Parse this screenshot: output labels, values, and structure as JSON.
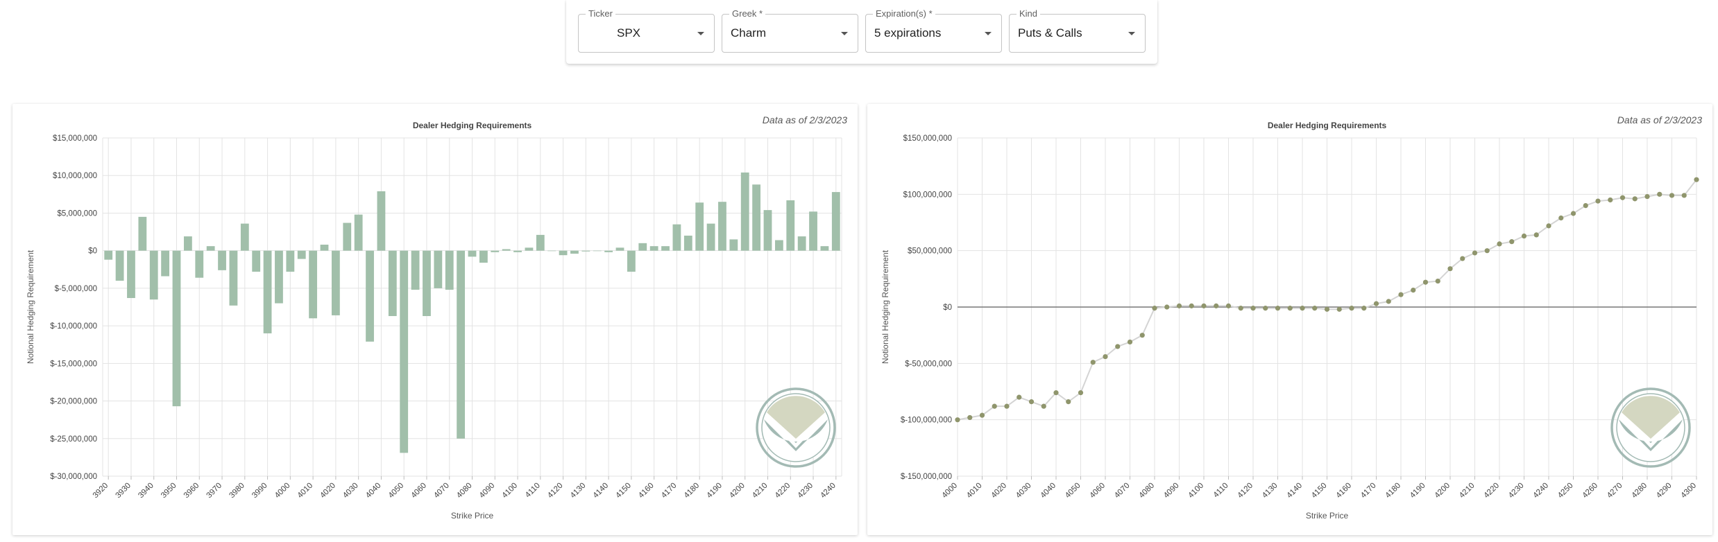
{
  "filters": [
    {
      "label": "Ticker",
      "value": "SPX"
    },
    {
      "label": "Greek *",
      "value": "Charm"
    },
    {
      "label": "Expiration(s) *",
      "value": "5 expirations"
    },
    {
      "label": "Kind",
      "value": "Puts & Calls"
    }
  ],
  "charts": [
    {
      "title": "Dealer Hedging Requirements",
      "date_note": "Data as of 2/3/2023"
    },
    {
      "title": "Dealer Hedging Requirements",
      "date_note": "Data as of 2/3/2023"
    }
  ],
  "colors": {
    "bar": "#a1bfaa",
    "line_point": "#8f956c",
    "line": "#d4d4d4",
    "logo_top": "#d4d7c1",
    "logo_bottom": "#a3bab4",
    "logo_ring": "#a3bab4"
  },
  "icons": {
    "dropdown": "caret-down-icon",
    "logo": "shield-v-logo"
  },
  "chart_data": [
    {
      "type": "bar",
      "xlabel": "Strike Price",
      "ylabel": "Notional Hedging Requirement",
      "ylim": [
        -30000000,
        15000000
      ],
      "yticks": [
        -30000000,
        -25000000,
        -20000000,
        -15000000,
        -10000000,
        -5000000,
        0,
        5000000,
        10000000,
        15000000
      ],
      "ytick_labels": [
        "$-30,000,000",
        "$-25,000,000",
        "$-20,000,000",
        "$-15,000,000",
        "$-10,000,000",
        "$-5,000,000",
        "$0",
        "$5,000,000",
        "$10,000,000",
        "$15,000,000"
      ],
      "xtick_labels": [
        "3920",
        "3930",
        "3940",
        "3950",
        "3960",
        "3970",
        "3980",
        "3990",
        "4000",
        "4010",
        "4020",
        "4030",
        "4040",
        "4050",
        "4060",
        "4070",
        "4080",
        "4090",
        "4100",
        "4110",
        "4120",
        "4130",
        "4140",
        "4150",
        "4160",
        "4170",
        "4180",
        "4190",
        "4200",
        "4210",
        "4220",
        "4230",
        "4240"
      ],
      "x": [
        3920,
        3925,
        3930,
        3935,
        3940,
        3945,
        3950,
        3955,
        3960,
        3965,
        3970,
        3975,
        3980,
        3985,
        3990,
        3995,
        4000,
        4005,
        4010,
        4015,
        4020,
        4025,
        4030,
        4035,
        4040,
        4045,
        4050,
        4055,
        4060,
        4065,
        4070,
        4075,
        4080,
        4085,
        4090,
        4095,
        4100,
        4105,
        4110,
        4115,
        4120,
        4125,
        4130,
        4135,
        4140,
        4145,
        4150,
        4155,
        4160,
        4165,
        4170,
        4175,
        4180,
        4185,
        4190,
        4195,
        4200,
        4205,
        4210,
        4215,
        4220,
        4225,
        4230,
        4235,
        4240
      ],
      "values": [
        -1200000,
        -4000000,
        -6300000,
        4500000,
        -6500000,
        -3400000,
        -20700000,
        1900000,
        -3600000,
        600000,
        -2600000,
        -7300000,
        3600000,
        -2800000,
        -11000000,
        -7000000,
        -2800000,
        -1100000,
        -9000000,
        800000,
        -8600000,
        3700000,
        4800000,
        -12100000,
        7900000,
        -8700000,
        -26900000,
        -5200000,
        -8700000,
        -5000000,
        -5200000,
        -25000000,
        -800000,
        -1600000,
        -200000,
        200000,
        -200000,
        400000,
        2100000,
        0,
        -600000,
        -400000,
        -100000,
        0,
        -200000,
        400000,
        -2800000,
        1000000,
        600000,
        600000,
        3500000,
        2000000,
        6400000,
        3600000,
        6500000,
        1500000,
        10400000,
        8800000,
        5400000,
        1400000,
        6700000,
        1900000,
        5200000,
        600000,
        7800000
      ]
    },
    {
      "type": "line",
      "xlabel": "Strike Price",
      "ylabel": "Notional Hedging Requirement",
      "ylim": [
        -150000000,
        150000000
      ],
      "yticks": [
        -150000000,
        -100000000,
        -50000000,
        0,
        50000000,
        100000000,
        150000000
      ],
      "ytick_labels": [
        "$-150,000,000",
        "$-100,000,000",
        "$-50,000,000",
        "$0",
        "$50,000,000",
        "$100,000,000",
        "$150,000,000"
      ],
      "xtick_labels": [
        "4000",
        "4010",
        "4020",
        "4030",
        "4040",
        "4050",
        "4060",
        "4070",
        "4080",
        "4090",
        "4100",
        "4110",
        "4120",
        "4130",
        "4140",
        "4150",
        "4160",
        "4170",
        "4180",
        "4190",
        "4200",
        "4210",
        "4220",
        "4230",
        "4240",
        "4250",
        "4260",
        "4270",
        "4280",
        "4290",
        "4300"
      ],
      "x": [
        4000,
        4005,
        4010,
        4015,
        4020,
        4025,
        4030,
        4035,
        4040,
        4045,
        4050,
        4055,
        4060,
        4065,
        4070,
        4075,
        4080,
        4085,
        4090,
        4095,
        4100,
        4105,
        4110,
        4115,
        4120,
        4125,
        4130,
        4135,
        4140,
        4145,
        4150,
        4155,
        4160,
        4165,
        4170,
        4175,
        4180,
        4185,
        4190,
        4195,
        4200,
        4205,
        4210,
        4215,
        4220,
        4225,
        4230,
        4235,
        4240,
        4245,
        4250,
        4255,
        4260,
        4265,
        4270,
        4275,
        4280,
        4285,
        4290,
        4295,
        4300
      ],
      "values": [
        -100000000,
        -98000000,
        -96000000,
        -88000000,
        -88000000,
        -80000000,
        -84000000,
        -88000000,
        -76000000,
        -84000000,
        -76000000,
        -49000000,
        -44000000,
        -35000000,
        -31000000,
        -25000000,
        -1000000,
        0,
        1000000,
        1000000,
        1000000,
        1000000,
        1000000,
        -1000000,
        -1000000,
        -1000000,
        -1000000,
        -1000000,
        -1000000,
        -1000000,
        -2000000,
        -2000000,
        -1000000,
        -1000000,
        3000000,
        5000000,
        11000000,
        15000000,
        22000000,
        23000000,
        34000000,
        43000000,
        48000000,
        50000000,
        56000000,
        58000000,
        63000000,
        64000000,
        72000000,
        79000000,
        83000000,
        90000000,
        94000000,
        95000000,
        97000000,
        96000000,
        98000000,
        100000000,
        99000000,
        99000000,
        113000000
      ]
    }
  ]
}
